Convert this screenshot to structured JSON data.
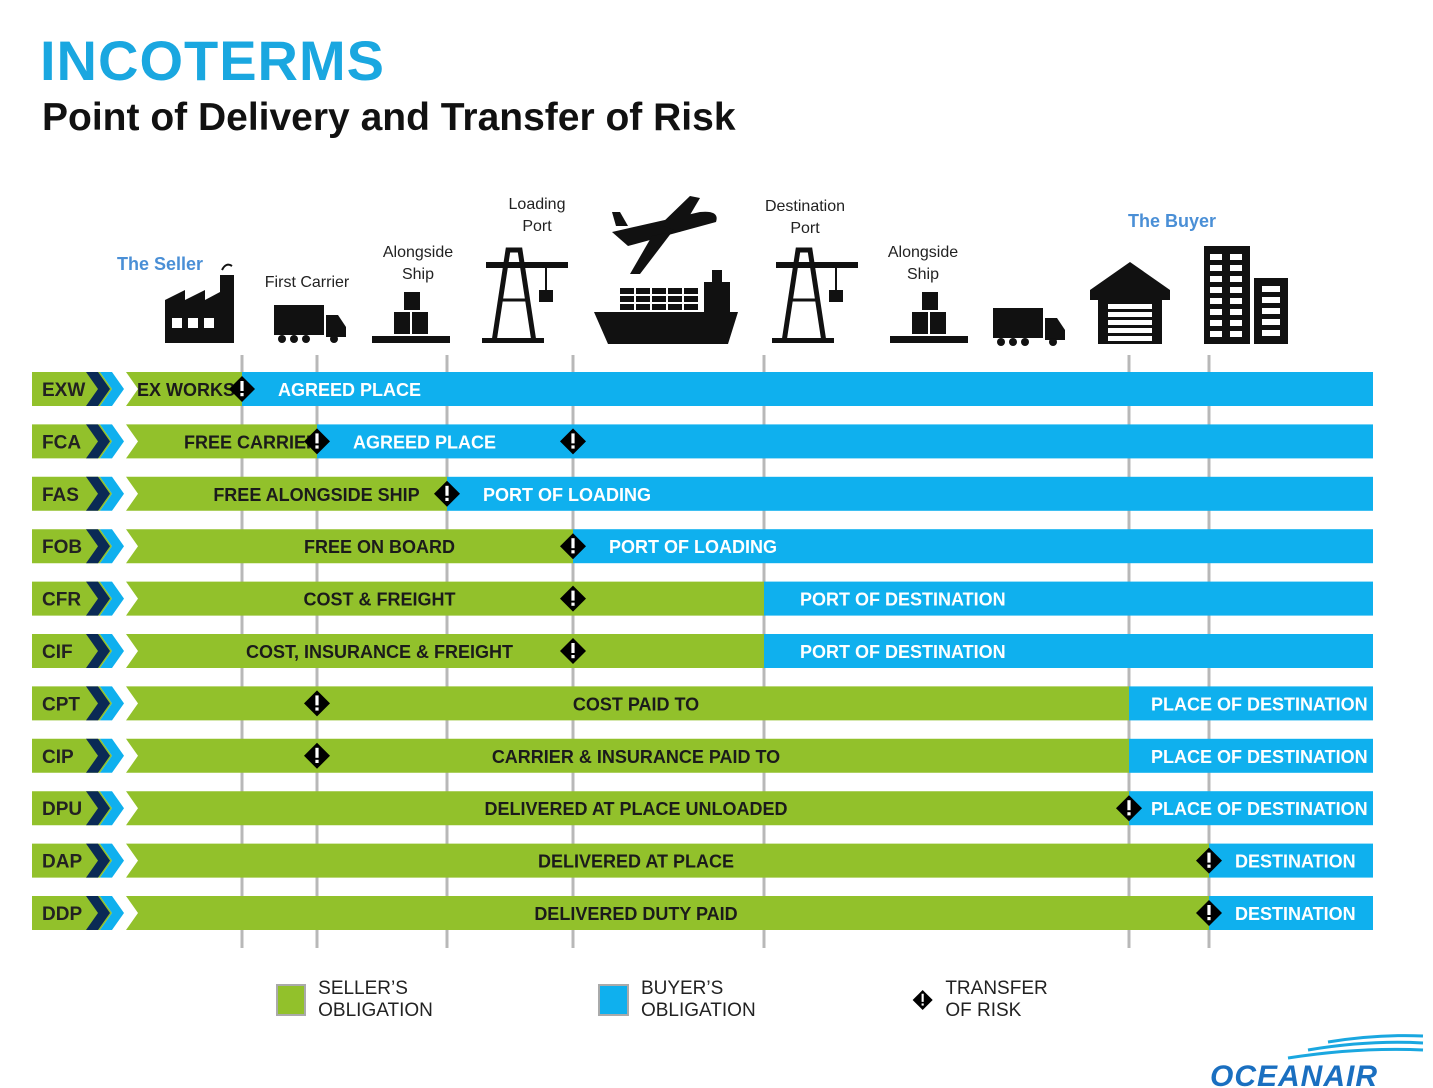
{
  "header": {
    "title": "INCOTERMS",
    "subtitle": "Point of Delivery and Transfer of Risk"
  },
  "colors": {
    "seller": "#92c12b",
    "buyer": "#0fb0ee",
    "accent": "#1aa7e0",
    "code_bg": "#92c12b"
  },
  "stages": [
    {
      "label_lines": [
        "The Seller"
      ],
      "highlight": true,
      "icon": "factory-icon"
    },
    {
      "label_lines": [
        "First Carrier"
      ],
      "icon": "truck-icon"
    },
    {
      "label_lines": [
        "Alongside",
        "Ship"
      ],
      "icon": "cargo-boxes-icon"
    },
    {
      "label_lines": [
        "Loading",
        "Port"
      ],
      "icon": "port-crane-icon"
    },
    {
      "label_lines": [],
      "icon": "airplane-icon"
    },
    {
      "label_lines": [],
      "icon": "cargo-ship-icon"
    },
    {
      "label_lines": [
        "Destination",
        "Port"
      ],
      "icon": "port-crane-icon"
    },
    {
      "label_lines": [
        "Alongside",
        "Ship"
      ],
      "icon": "cargo-boxes-icon"
    },
    {
      "label_lines": [],
      "icon": "truck-icon"
    },
    {
      "label_lines": [
        "The Buyer"
      ],
      "highlight": true,
      "icon": "warehouse-icon"
    },
    {
      "label_lines": [],
      "icon": "buildings-icon"
    }
  ],
  "terms": [
    {
      "code": "EXW",
      "seller_label": "EX WORKS",
      "buyer_label": "AGREED PLACE",
      "seller_end_stage": 0,
      "risk_stages": [
        0
      ]
    },
    {
      "code": "FCA",
      "seller_label": "FREE CARRIER",
      "buyer_label": "AGREED PLACE",
      "seller_end_stage": 1,
      "risk_stages": [
        1,
        3
      ]
    },
    {
      "code": "FAS",
      "seller_label": "FREE ALONGSIDE SHIP",
      "buyer_label": "PORT OF LOADING",
      "seller_end_stage": 2,
      "risk_stages": [
        2
      ]
    },
    {
      "code": "FOB",
      "seller_label": "FREE  ON BOARD",
      "buyer_label": "PORT OF LOADING",
      "seller_end_stage": 3,
      "risk_stages": [
        3
      ]
    },
    {
      "code": "CFR",
      "seller_label": "COST & FREIGHT",
      "buyer_label": "PORT OF DESTINATION",
      "seller_end_stage": 6,
      "risk_stages": [
        3
      ]
    },
    {
      "code": "CIF",
      "seller_label": "COST, INSURANCE & FREIGHT",
      "buyer_label": "PORT OF DESTINATION",
      "seller_end_stage": 6,
      "risk_stages": [
        3
      ]
    },
    {
      "code": "CPT",
      "seller_label": "COST PAID TO",
      "buyer_label": "PLACE OF DESTINATION",
      "seller_end_stage": 9,
      "risk_stages": [
        1
      ]
    },
    {
      "code": "CIP",
      "seller_label": "CARRIER & INSURANCE PAID TO",
      "buyer_label": "PLACE OF DESTINATION",
      "seller_end_stage": 9,
      "risk_stages": [
        1
      ]
    },
    {
      "code": "DPU",
      "seller_label": "DELIVERED AT PLACE UNLOADED",
      "buyer_label": "PLACE OF DESTINATION",
      "seller_end_stage": 9,
      "risk_stages": [
        9
      ]
    },
    {
      "code": "DAP",
      "seller_label": "DELIVERED AT PLACE",
      "buyer_label": "DESTINATION",
      "seller_end_stage": 10,
      "risk_stages": [
        10
      ]
    },
    {
      "code": "DDP",
      "seller_label": "DELIVERED DUTY PAID",
      "buyer_label": "DESTINATION",
      "seller_end_stage": 10,
      "risk_stages": [
        10
      ]
    }
  ],
  "legend": {
    "seller": "SELLER’S OBLIGATION",
    "buyer": "BUYER’S OBLIGATION",
    "risk": "TRANSFER OF RISK"
  },
  "brand": {
    "logo_text": "OCEANAIR"
  }
}
